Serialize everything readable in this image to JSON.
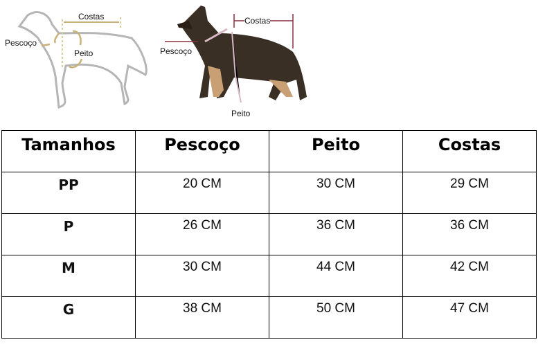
{
  "diagrams": {
    "outline": {
      "costas": "Costas",
      "pescoco": "Pescoço",
      "peito": "Peito"
    },
    "photo": {
      "costas": "Costas",
      "pescoco": "Pescoço",
      "peito": "Peito"
    }
  },
  "table": {
    "headers": [
      "Tamanhos",
      "Pescoço",
      "Peito",
      "Costas"
    ],
    "rows": [
      [
        "PP",
        "20 CM",
        "30 CM",
        "29 CM"
      ],
      [
        "P",
        "26 CM",
        "36 CM",
        "36 CM"
      ],
      [
        "M",
        "30 CM",
        "44 CM",
        "42 CM"
      ],
      [
        "G",
        "38 CM",
        "50 CM",
        "47 CM"
      ]
    ]
  },
  "colors": {
    "outline_dog": "#b5b5b5",
    "outline_arrows": "#c9b27a",
    "photo_arrows": "#8a3040"
  }
}
